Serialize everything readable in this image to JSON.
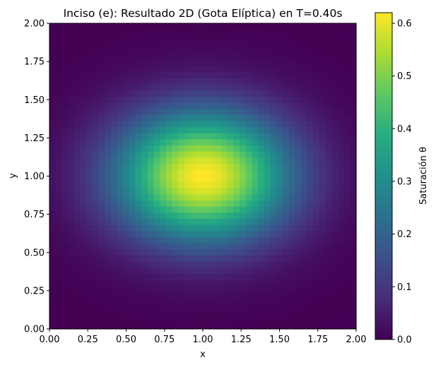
{
  "chart_data": {
    "type": "heatmap",
    "title": "Inciso (e): Resultado 2D (Gota Elíptica) en T=0.40s",
    "xlabel": "x",
    "ylabel": "y",
    "xlim": [
      0,
      2
    ],
    "ylim": [
      0,
      2
    ],
    "x_ticks": [
      "0.00",
      "0.25",
      "0.50",
      "0.75",
      "1.00",
      "1.25",
      "1.50",
      "1.75",
      "2.00"
    ],
    "y_ticks": [
      "0.00",
      "0.25",
      "0.50",
      "0.75",
      "1.00",
      "1.25",
      "1.50",
      "1.75",
      "2.00"
    ],
    "colormap": "viridis",
    "colorbar": {
      "label": "Saturación θ",
      "range": [
        0,
        0.62
      ],
      "ticks": [
        "0.0",
        "0.1",
        "0.2",
        "0.3",
        "0.4",
        "0.5",
        "0.6"
      ]
    },
    "field": {
      "shape": "elliptical gaussian",
      "center": [
        1.0,
        1.0
      ],
      "peak": 0.62,
      "sigma_x": 0.4,
      "sigma_y": 0.3
    }
  }
}
